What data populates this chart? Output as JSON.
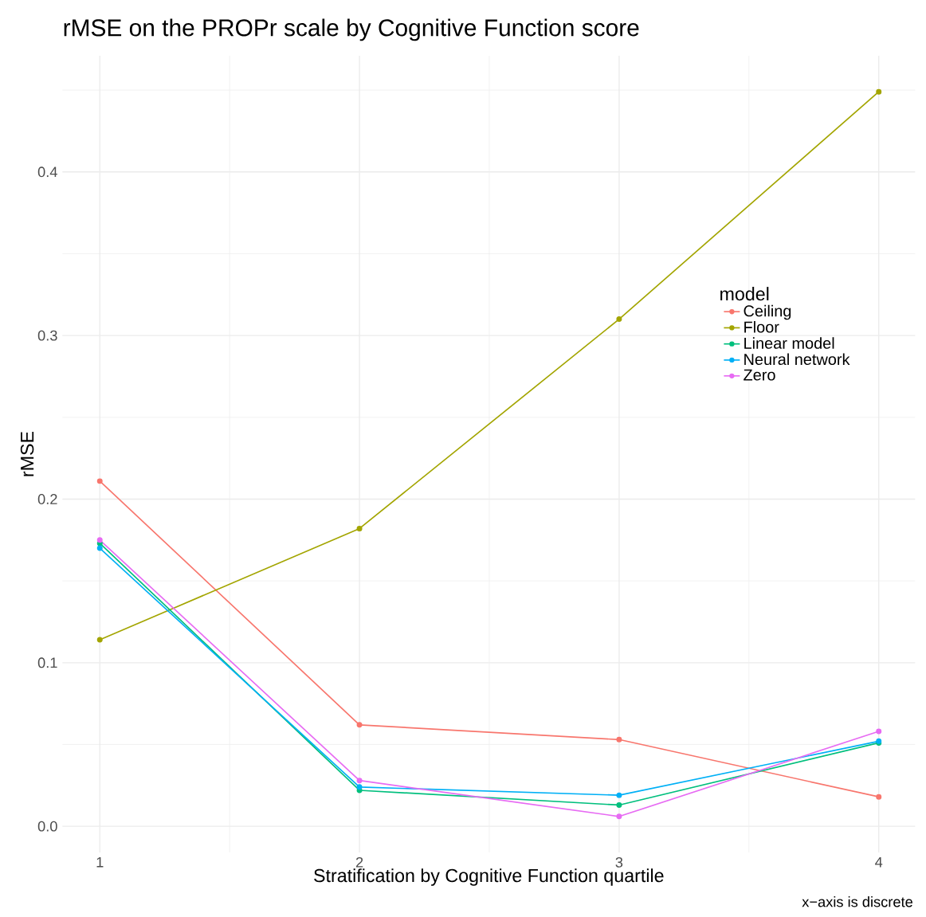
{
  "chart_data": {
    "type": "line",
    "title": "rMSE on the PROPr scale by Cognitive Function score",
    "xlabel": "Stratification by Cognitive Function quartile",
    "ylabel": "rMSE",
    "legend_title": "model",
    "categories": [
      "1",
      "2",
      "3",
      "4"
    ],
    "series": [
      {
        "name": "Ceiling",
        "color": "#f8766d",
        "values": [
          0.211,
          0.062,
          0.053,
          0.018
        ]
      },
      {
        "name": "Floor",
        "color": "#a3a500",
        "values": [
          0.114,
          0.182,
          0.31,
          0.449
        ]
      },
      {
        "name": "Linear model",
        "color": "#00bf7d",
        "values": [
          0.173,
          0.022,
          0.013,
          0.051
        ]
      },
      {
        "name": "Neural network",
        "color": "#00b0f6",
        "values": [
          0.17,
          0.024,
          0.019,
          0.052
        ]
      },
      {
        "name": "Zero",
        "color": "#e76bf3",
        "values": [
          0.175,
          0.028,
          0.006,
          0.058
        ]
      }
    ],
    "ylim": [
      -0.016,
      0.471
    ],
    "yticks": [
      {
        "value": 0,
        "label": "0.0"
      },
      0.1,
      0.2,
      0.3,
      0.4
    ],
    "grid": true,
    "legend": "right",
    "marker": "circle",
    "line_style": "solid",
    "annotations": [
      "x−axis is discrete"
    ]
  }
}
